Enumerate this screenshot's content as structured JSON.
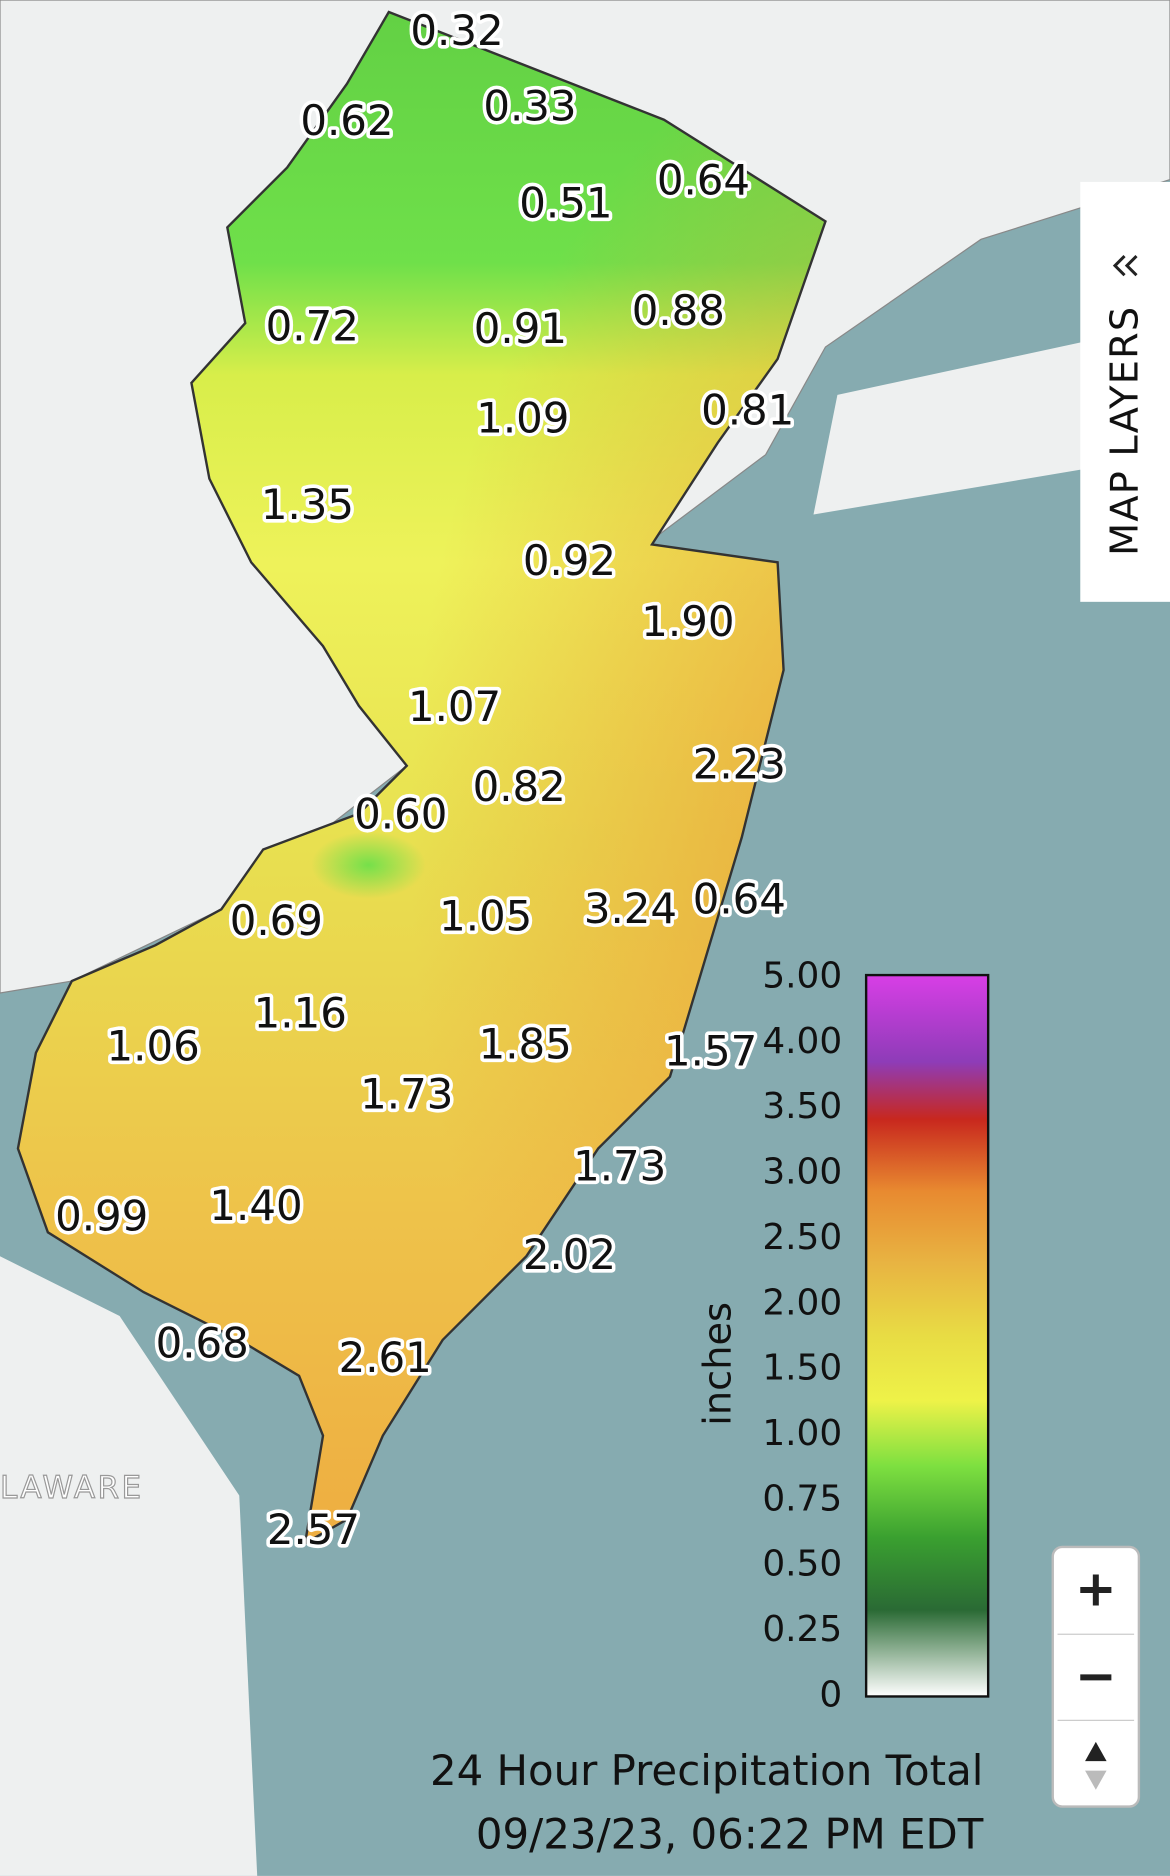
{
  "map": {
    "layers_button": "MAP LAYERS",
    "region_label": "LAWARE",
    "stations": [
      "0.32",
      "0.62",
      "0.33",
      "0.51",
      "0.64",
      "0.72",
      "0.91",
      "0.88",
      "1.09",
      "0.81",
      "1.35",
      "0.92",
      "1.90",
      "1.07",
      "2.23",
      "0.82",
      "0.60",
      "0.69",
      "1.05",
      "3.24",
      "0.64",
      "1.16",
      "1.06",
      "1.85",
      "1.57",
      "1.73",
      "1.73",
      "0.99",
      "1.40",
      "2.02",
      "0.68",
      "2.61",
      "2.57"
    ],
    "legend": {
      "unit": "inches",
      "ticks": [
        "5.00",
        "4.00",
        "3.50",
        "3.00",
        "2.50",
        "2.00",
        "1.50",
        "1.00",
        "0.75",
        "0.50",
        "0.25",
        "0"
      ]
    },
    "caption": {
      "title": "24 Hour Precipitation Total",
      "timestamp": "09/23/23, 06:22 PM EDT"
    }
  }
}
